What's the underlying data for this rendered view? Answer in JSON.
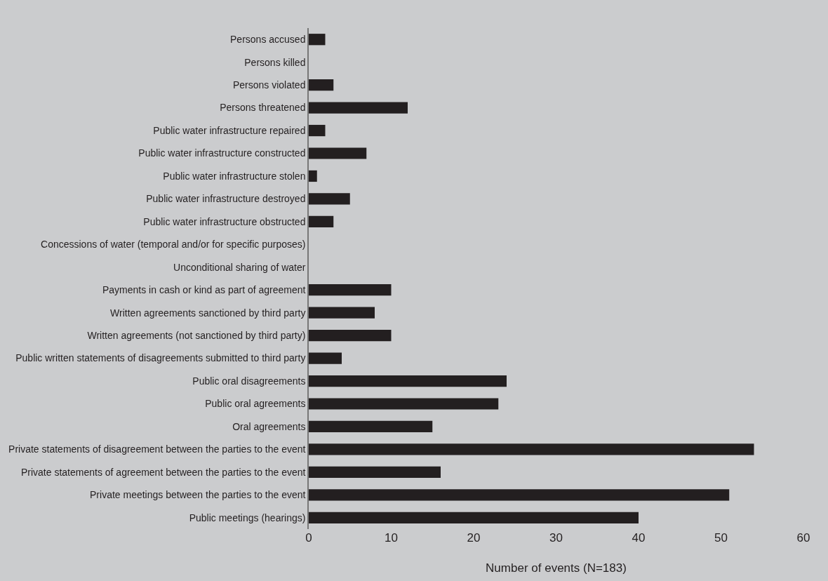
{
  "chart_data": {
    "type": "bar",
    "orientation": "horizontal",
    "xlabel": "Number of events (N=183)",
    "categories": [
      "Persons accused",
      "Persons killed",
      "Persons violated",
      "Persons threatened",
      "Public water infrastructure repaired",
      "Public water infrastructure constructed",
      "Public water infrastructure stolen",
      "Public water infrastructure destroyed",
      "Public water infrastructure obstructed",
      "Concessions of water (temporal and/or for specific purposes)",
      "Unconditional sharing of water",
      "Payments in cash or kind as part of agreement",
      "Written agreements sanctioned by third party",
      "Written agreements (not sanctioned by third party)",
      "Public written statements of disagreements submitted to third party",
      "Public oral disagreements",
      "Public oral agreements",
      "Oral agreements",
      "Private statements of disagreement between the parties to the event",
      "Private statements of agreement between the parties to the event",
      "Private meetings between the parties to the event",
      "Public meetings (hearings)"
    ],
    "values": [
      2,
      0,
      3,
      12,
      2,
      7,
      1,
      5,
      3,
      0,
      0,
      10,
      8,
      10,
      4,
      24,
      23,
      15,
      54,
      16,
      51,
      40
    ],
    "color": "#231f20",
    "xlim": [
      0,
      60
    ],
    "xticks": [
      0,
      10,
      20,
      30,
      40,
      50,
      60
    ],
    "grid": false,
    "legend": false
  }
}
